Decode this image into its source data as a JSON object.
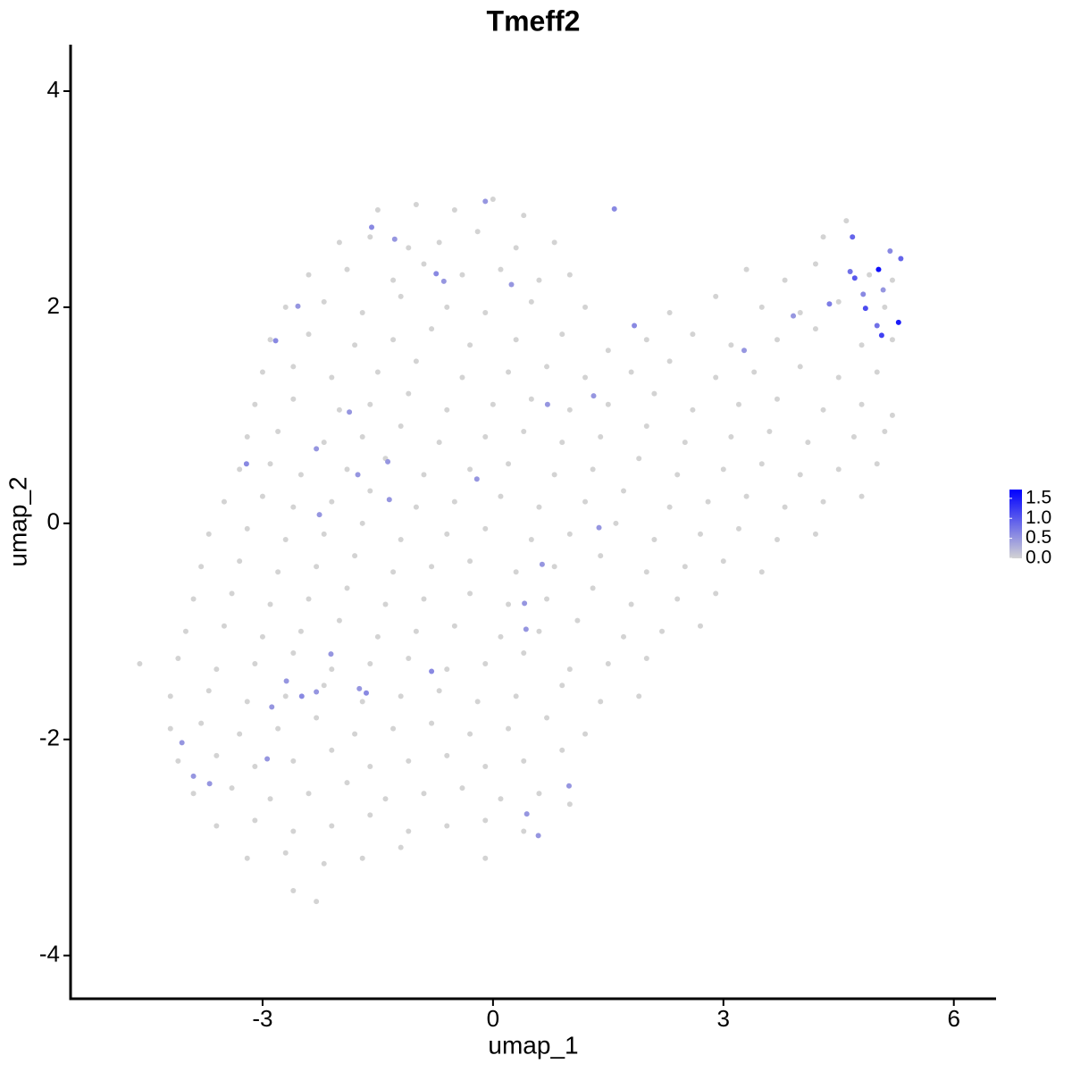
{
  "chart_data": {
    "type": "scatter",
    "title": "Tmeff2",
    "x_label": "umap_1",
    "y_label": "umap_2",
    "xlim": [
      -5.5,
      6.55
    ],
    "ylim": [
      -4.4,
      4.43
    ],
    "xticks": [
      -3,
      0,
      3,
      6
    ],
    "yticks": [
      -4,
      -2,
      0,
      2,
      4
    ],
    "colorbar": {
      "lim": [
        0,
        1.72
      ],
      "low_color": "#d3d3d3",
      "high_color": "#0000ff",
      "ticks": [
        {
          "value": 0,
          "label": "0.0"
        },
        0.5,
        {
          "value": 1,
          "label": "1.0"
        },
        1.5
      ]
    },
    "background": {
      "color": "#d3d3d3",
      "points": [
        [
          -1.5,
          2.9
        ],
        [
          -1.0,
          2.95
        ],
        [
          -0.5,
          2.9
        ],
        [
          0.0,
          3.0
        ],
        [
          0.4,
          2.85
        ],
        [
          -2.0,
          2.6
        ],
        [
          -1.6,
          2.65
        ],
        [
          -1.1,
          2.55
        ],
        [
          -0.7,
          2.6
        ],
        [
          -0.2,
          2.7
        ],
        [
          0.3,
          2.55
        ],
        [
          0.8,
          2.6
        ],
        [
          4.3,
          2.65
        ],
        [
          4.6,
          2.8
        ],
        [
          -2.4,
          2.3
        ],
        [
          -1.9,
          2.35
        ],
        [
          -1.3,
          2.25
        ],
        [
          -0.9,
          2.4
        ],
        [
          -0.4,
          2.3
        ],
        [
          0.1,
          2.35
        ],
        [
          0.6,
          2.25
        ],
        [
          1.0,
          2.3
        ],
        [
          3.3,
          2.35
        ],
        [
          3.8,
          2.25
        ],
        [
          4.2,
          2.4
        ],
        [
          4.9,
          2.3
        ],
        [
          5.2,
          2.25
        ],
        [
          -2.7,
          2.0
        ],
        [
          -2.2,
          2.05
        ],
        [
          -1.7,
          1.95
        ],
        [
          -1.2,
          2.1
        ],
        [
          -0.6,
          2.0
        ],
        [
          -0.1,
          1.95
        ],
        [
          0.5,
          2.05
        ],
        [
          1.2,
          2.0
        ],
        [
          2.3,
          1.95
        ],
        [
          2.9,
          2.1
        ],
        [
          3.5,
          2.0
        ],
        [
          4.0,
          1.95
        ],
        [
          4.5,
          2.05
        ],
        [
          5.1,
          2.0
        ],
        [
          -2.9,
          1.7
        ],
        [
          -2.4,
          1.75
        ],
        [
          -1.8,
          1.65
        ],
        [
          -1.3,
          1.7
        ],
        [
          -0.8,
          1.8
        ],
        [
          -0.3,
          1.65
        ],
        [
          0.3,
          1.7
        ],
        [
          0.9,
          1.75
        ],
        [
          1.5,
          1.6
        ],
        [
          2.0,
          1.7
        ],
        [
          2.6,
          1.75
        ],
        [
          3.1,
          1.65
        ],
        [
          3.7,
          1.7
        ],
        [
          4.2,
          1.8
        ],
        [
          4.8,
          1.65
        ],
        [
          5.2,
          1.7
        ],
        [
          -3.0,
          1.4
        ],
        [
          -2.6,
          1.45
        ],
        [
          -2.1,
          1.35
        ],
        [
          -1.5,
          1.4
        ],
        [
          -1.0,
          1.5
        ],
        [
          -0.4,
          1.35
        ],
        [
          0.2,
          1.4
        ],
        [
          0.7,
          1.45
        ],
        [
          1.2,
          1.35
        ],
        [
          1.8,
          1.4
        ],
        [
          2.3,
          1.5
        ],
        [
          2.9,
          1.35
        ],
        [
          3.4,
          1.4
        ],
        [
          4.0,
          1.45
        ],
        [
          4.5,
          1.35
        ],
        [
          5.0,
          1.4
        ],
        [
          -3.1,
          1.1
        ],
        [
          -2.6,
          1.15
        ],
        [
          -2.0,
          1.05
        ],
        [
          -1.6,
          1.1
        ],
        [
          -1.1,
          1.2
        ],
        [
          -0.6,
          1.05
        ],
        [
          0.0,
          1.1
        ],
        [
          0.5,
          1.15
        ],
        [
          1.0,
          1.05
        ],
        [
          1.5,
          1.1
        ],
        [
          2.1,
          1.2
        ],
        [
          2.6,
          1.05
        ],
        [
          3.2,
          1.1
        ],
        [
          3.7,
          1.15
        ],
        [
          4.3,
          1.05
        ],
        [
          4.8,
          1.1
        ],
        [
          5.2,
          1.0
        ],
        [
          -3.2,
          0.8
        ],
        [
          -2.8,
          0.85
        ],
        [
          -2.2,
          0.75
        ],
        [
          -1.7,
          0.8
        ],
        [
          -1.2,
          0.9
        ],
        [
          -0.7,
          0.75
        ],
        [
          -0.1,
          0.8
        ],
        [
          0.4,
          0.85
        ],
        [
          0.9,
          0.75
        ],
        [
          1.4,
          0.8
        ],
        [
          2.0,
          0.9
        ],
        [
          2.5,
          0.75
        ],
        [
          3.1,
          0.8
        ],
        [
          3.6,
          0.85
        ],
        [
          4.1,
          0.75
        ],
        [
          4.7,
          0.8
        ],
        [
          5.1,
          0.85
        ],
        [
          -3.3,
          0.5
        ],
        [
          -2.9,
          0.55
        ],
        [
          -2.5,
          0.45
        ],
        [
          -1.9,
          0.5
        ],
        [
          -1.4,
          0.6
        ],
        [
          -0.9,
          0.45
        ],
        [
          -0.3,
          0.5
        ],
        [
          0.2,
          0.55
        ],
        [
          0.8,
          0.45
        ],
        [
          1.3,
          0.5
        ],
        [
          1.9,
          0.6
        ],
        [
          2.4,
          0.45
        ],
        [
          3.0,
          0.5
        ],
        [
          3.5,
          0.55
        ],
        [
          4.0,
          0.45
        ],
        [
          4.5,
          0.5
        ],
        [
          5.0,
          0.55
        ],
        [
          -3.5,
          0.2
        ],
        [
          -3.0,
          0.25
        ],
        [
          -2.6,
          0.15
        ],
        [
          -2.1,
          0.2
        ],
        [
          -1.6,
          0.3
        ],
        [
          -1.0,
          0.15
        ],
        [
          -0.5,
          0.2
        ],
        [
          0.1,
          0.25
        ],
        [
          0.6,
          0.15
        ],
        [
          1.2,
          0.2
        ],
        [
          1.7,
          0.3
        ],
        [
          2.3,
          0.15
        ],
        [
          2.8,
          0.2
        ],
        [
          3.3,
          0.25
        ],
        [
          3.8,
          0.15
        ],
        [
          4.3,
          0.2
        ],
        [
          4.8,
          0.25
        ],
        [
          -3.7,
          -0.1
        ],
        [
          -3.2,
          -0.05
        ],
        [
          -2.7,
          -0.15
        ],
        [
          -2.2,
          -0.1
        ],
        [
          -1.7,
          0.0
        ],
        [
          -1.2,
          -0.15
        ],
        [
          -0.6,
          -0.1
        ],
        [
          -0.1,
          -0.05
        ],
        [
          0.5,
          -0.15
        ],
        [
          1.0,
          -0.1
        ],
        [
          1.6,
          0.0
        ],
        [
          2.1,
          -0.15
        ],
        [
          2.7,
          -0.1
        ],
        [
          3.2,
          -0.05
        ],
        [
          3.7,
          -0.15
        ],
        [
          4.2,
          -0.1
        ],
        [
          -3.8,
          -0.4
        ],
        [
          -3.3,
          -0.35
        ],
        [
          -2.8,
          -0.45
        ],
        [
          -2.3,
          -0.4
        ],
        [
          -1.8,
          -0.3
        ],
        [
          -1.3,
          -0.45
        ],
        [
          -0.8,
          -0.4
        ],
        [
          -0.3,
          -0.35
        ],
        [
          0.3,
          -0.45
        ],
        [
          0.8,
          -0.4
        ],
        [
          1.4,
          -0.3
        ],
        [
          2.0,
          -0.45
        ],
        [
          2.5,
          -0.4
        ],
        [
          3.0,
          -0.35
        ],
        [
          3.5,
          -0.45
        ],
        [
          -3.9,
          -0.7
        ],
        [
          -3.4,
          -0.65
        ],
        [
          -2.9,
          -0.75
        ],
        [
          -2.4,
          -0.7
        ],
        [
          -1.9,
          -0.6
        ],
        [
          -1.4,
          -0.75
        ],
        [
          -0.9,
          -0.7
        ],
        [
          -0.3,
          -0.65
        ],
        [
          0.2,
          -0.75
        ],
        [
          0.7,
          -0.7
        ],
        [
          1.3,
          -0.6
        ],
        [
          1.8,
          -0.75
        ],
        [
          2.4,
          -0.7
        ],
        [
          2.9,
          -0.65
        ],
        [
          -4.0,
          -1.0
        ],
        [
          -3.5,
          -0.95
        ],
        [
          -3.0,
          -1.05
        ],
        [
          -2.5,
          -1.0
        ],
        [
          -2.0,
          -0.9
        ],
        [
          -1.5,
          -1.05
        ],
        [
          -1.0,
          -1.0
        ],
        [
          -0.5,
          -0.95
        ],
        [
          0.1,
          -1.05
        ],
        [
          0.6,
          -1.0
        ],
        [
          1.1,
          -0.9
        ],
        [
          1.7,
          -1.05
        ],
        [
          2.2,
          -1.0
        ],
        [
          2.7,
          -0.95
        ],
        [
          -4.6,
          -1.3
        ],
        [
          -4.1,
          -1.25
        ],
        [
          -3.6,
          -1.35
        ],
        [
          -3.1,
          -1.3
        ],
        [
          -2.6,
          -1.2
        ],
        [
          -2.1,
          -1.35
        ],
        [
          -1.6,
          -1.3
        ],
        [
          -1.1,
          -1.25
        ],
        [
          -0.6,
          -1.35
        ],
        [
          -0.1,
          -1.3
        ],
        [
          0.4,
          -1.2
        ],
        [
          1.0,
          -1.35
        ],
        [
          1.5,
          -1.3
        ],
        [
          2.0,
          -1.25
        ],
        [
          -4.2,
          -1.6
        ],
        [
          -3.7,
          -1.55
        ],
        [
          -3.2,
          -1.65
        ],
        [
          -2.7,
          -1.6
        ],
        [
          -2.2,
          -1.5
        ],
        [
          -1.7,
          -1.65
        ],
        [
          -1.2,
          -1.6
        ],
        [
          -0.7,
          -1.55
        ],
        [
          -0.2,
          -1.65
        ],
        [
          0.3,
          -1.6
        ],
        [
          0.9,
          -1.5
        ],
        [
          1.4,
          -1.65
        ],
        [
          1.9,
          -1.6
        ],
        [
          -4.2,
          -1.9
        ],
        [
          -3.8,
          -1.85
        ],
        [
          -3.3,
          -1.95
        ],
        [
          -2.8,
          -1.9
        ],
        [
          -2.3,
          -1.8
        ],
        [
          -1.8,
          -1.95
        ],
        [
          -1.3,
          -1.9
        ],
        [
          -0.8,
          -1.85
        ],
        [
          -0.3,
          -1.95
        ],
        [
          0.2,
          -1.9
        ],
        [
          0.7,
          -1.8
        ],
        [
          1.2,
          -1.95
        ],
        [
          -4.1,
          -2.2
        ],
        [
          -3.6,
          -2.15
        ],
        [
          -3.1,
          -2.25
        ],
        [
          -2.6,
          -2.2
        ],
        [
          -2.1,
          -2.1
        ],
        [
          -1.6,
          -2.25
        ],
        [
          -1.1,
          -2.2
        ],
        [
          -0.6,
          -2.15
        ],
        [
          -0.1,
          -2.25
        ],
        [
          0.4,
          -2.2
        ],
        [
          0.9,
          -2.1
        ],
        [
          -3.9,
          -2.5
        ],
        [
          -3.4,
          -2.45
        ],
        [
          -2.9,
          -2.55
        ],
        [
          -2.4,
          -2.5
        ],
        [
          -1.9,
          -2.4
        ],
        [
          -1.4,
          -2.55
        ],
        [
          -0.9,
          -2.5
        ],
        [
          -0.4,
          -2.45
        ],
        [
          0.1,
          -2.55
        ],
        [
          0.6,
          -2.5
        ],
        [
          1.0,
          -2.6
        ],
        [
          -3.6,
          -2.8
        ],
        [
          -3.1,
          -2.75
        ],
        [
          -2.6,
          -2.85
        ],
        [
          -2.1,
          -2.8
        ],
        [
          -1.6,
          -2.7
        ],
        [
          -1.1,
          -2.85
        ],
        [
          -0.6,
          -2.8
        ],
        [
          -0.1,
          -2.75
        ],
        [
          0.4,
          -2.85
        ],
        [
          -3.2,
          -3.1
        ],
        [
          -2.7,
          -3.05
        ],
        [
          -2.2,
          -3.15
        ],
        [
          -1.7,
          -3.1
        ],
        [
          -1.2,
          -3.0
        ],
        [
          -0.1,
          -3.1
        ],
        [
          -2.6,
          -3.4
        ],
        [
          -2.3,
          -3.5
        ]
      ]
    },
    "cells": [
      [
        5.02,
        2.35,
        1.6
      ],
      [
        5.28,
        1.86,
        1.5
      ],
      [
        5.06,
        1.74,
        1.2
      ],
      [
        4.85,
        1.99,
        1.1
      ],
      [
        4.71,
        2.27,
        1.0
      ],
      [
        4.68,
        2.65,
        0.9
      ],
      [
        5.31,
        2.45,
        0.9
      ],
      [
        5.17,
        2.52,
        0.6
      ],
      [
        5.0,
        1.83,
        0.8
      ],
      [
        4.65,
        2.33,
        0.8
      ],
      [
        4.38,
        2.03,
        0.7
      ],
      [
        4.82,
        2.12,
        0.6
      ],
      [
        5.08,
        2.16,
        0.5
      ],
      [
        1.58,
        2.91,
        0.6
      ],
      [
        -1.58,
        2.74,
        0.6
      ],
      [
        -0.1,
        2.98,
        0.5
      ],
      [
        -0.74,
        2.31,
        0.6
      ],
      [
        -0.64,
        2.24,
        0.5
      ],
      [
        0.24,
        2.21,
        0.5
      ],
      [
        -1.28,
        2.63,
        0.5
      ],
      [
        -2.54,
        2.01,
        0.5
      ],
      [
        -2.83,
        1.69,
        0.6
      ],
      [
        1.84,
        1.83,
        0.6
      ],
      [
        3.27,
        1.6,
        0.5
      ],
      [
        3.91,
        1.92,
        0.5
      ],
      [
        1.31,
        1.18,
        0.5
      ],
      [
        0.71,
        1.1,
        0.5
      ],
      [
        -1.87,
        1.03,
        0.5
      ],
      [
        -2.3,
        0.69,
        0.5
      ],
      [
        -3.21,
        0.55,
        0.6
      ],
      [
        -1.37,
        0.57,
        0.5
      ],
      [
        -1.76,
        0.45,
        0.5
      ],
      [
        -0.21,
        0.41,
        0.5
      ],
      [
        -1.35,
        0.22,
        0.5
      ],
      [
        -2.26,
        0.08,
        0.5
      ],
      [
        1.38,
        -0.04,
        0.5
      ],
      [
        0.64,
        -0.38,
        0.5
      ],
      [
        0.41,
        -0.74,
        0.5
      ],
      [
        0.43,
        -0.98,
        0.5
      ],
      [
        -2.11,
        -1.21,
        0.5
      ],
      [
        -0.8,
        -1.37,
        0.6
      ],
      [
        -2.69,
        -1.46,
        0.5
      ],
      [
        -2.49,
        -1.6,
        0.6
      ],
      [
        -2.3,
        -1.56,
        0.5
      ],
      [
        -1.74,
        -1.53,
        0.5
      ],
      [
        -1.65,
        -1.57,
        0.6
      ],
      [
        -2.88,
        -1.7,
        0.5
      ],
      [
        -4.05,
        -2.03,
        0.5
      ],
      [
        -2.94,
        -2.18,
        0.5
      ],
      [
        -3.9,
        -2.34,
        0.5
      ],
      [
        -3.69,
        -2.41,
        0.5
      ],
      [
        0.99,
        -2.43,
        0.5
      ],
      [
        0.44,
        -2.69,
        0.5
      ],
      [
        0.59,
        -2.89,
        0.5
      ]
    ]
  }
}
